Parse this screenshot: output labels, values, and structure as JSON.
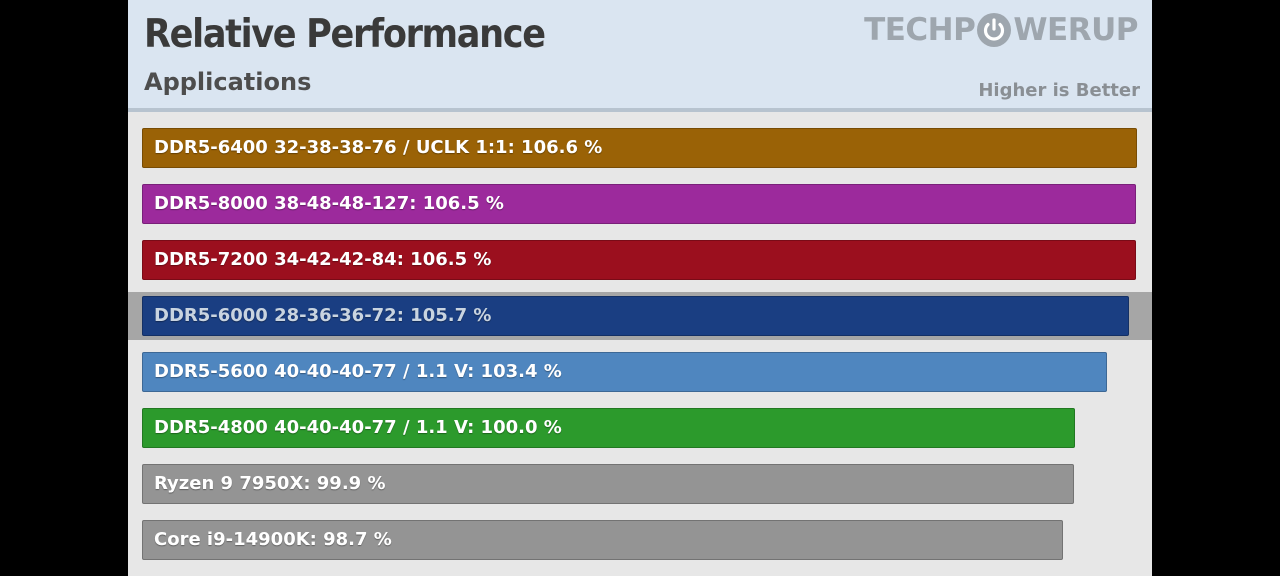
{
  "header": {
    "title": "Relative Performance",
    "subtitle": "Applications",
    "logo_left": "TECHP",
    "logo_right": "WERUP",
    "logo_icon": "power-icon",
    "note": "Higher is Better"
  },
  "colors": {
    "header_bg": "#dae5f1",
    "panel_bg": "#e7e7e7",
    "highlight_row": "#a6a6a6"
  },
  "chart_data": {
    "type": "bar",
    "orientation": "horizontal",
    "title": "Relative Performance",
    "subtitle": "Applications",
    "xlabel": "",
    "ylabel": "",
    "unit": "%",
    "xlim": [
      0,
      106.6
    ],
    "grid": false,
    "highlighted": "DDR5-6000 28-36-36-72",
    "categories": [
      "DDR5-6400 32-38-38-76 / UCLK 1:1",
      "DDR5-8000 38-48-48-127",
      "DDR5-7200 34-42-42-84",
      "DDR5-6000 28-36-36-72",
      "DDR5-5600 40-40-40-77 / 1.1 V",
      "DDR5-4800 40-40-40-77 / 1.1 V",
      "Ryzen 9 7950X",
      "Core i9-14900K"
    ],
    "values": [
      106.6,
      106.5,
      106.5,
      105.7,
      103.4,
      100.0,
      99.9,
      98.7
    ],
    "labels": [
      "DDR5-6400 32-38-38-76 / UCLK 1:1: 106.6 %",
      "DDR5-8000 38-48-48-127: 106.5 %",
      "DDR5-7200 34-42-42-84: 106.5 %",
      "DDR5-6000 28-36-36-72: 105.7 %",
      "DDR5-5600 40-40-40-77 / 1.1 V: 103.4 %",
      "DDR5-4800 40-40-40-77 / 1.1 V: 100.0 %",
      "Ryzen 9 7950X: 99.9 %",
      "Core i9-14900K: 98.7 %"
    ],
    "colors": [
      "#9a6206",
      "#9c2a9c",
      "#9b0f1e",
      "#1a3e82",
      "#4f86bf",
      "#2c9a2c",
      "#949494",
      "#949494"
    ]
  }
}
